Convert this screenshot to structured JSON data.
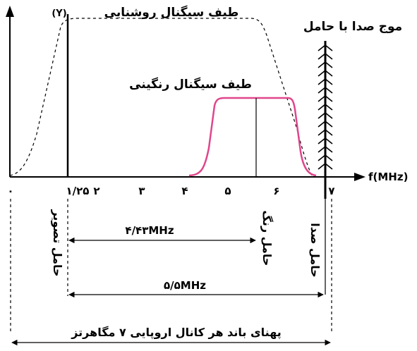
{
  "labels": {
    "luminance_spectrum": "طیف سیگنال روشنایی",
    "luminance_symbol": "(Y)",
    "chroma_spectrum": "طیف سیگنال رنگینی",
    "sound_carrier_wave": "موج صدا با حامل",
    "x_axis": "f(MHz)",
    "picture_carrier": "حامل تصویر",
    "color_carrier": "حامل رنگ",
    "sound_carrier": "حامل صدا",
    "width_443": "۴/۴۳MHz",
    "width_55": "۵/۵MHz",
    "bandwidth": "پهنای باند هر کانال اروپایی ۷ مگاهرتز"
  },
  "ticks": [
    "۰",
    "۱/۲۵",
    "۲",
    "۳",
    "۴",
    "۵",
    "۶",
    "۷"
  ],
  "colors": {
    "chroma": "#e0468b",
    "ink": "#000000"
  },
  "icons": {
    "axis_arrow": "arrow-icon"
  }
}
